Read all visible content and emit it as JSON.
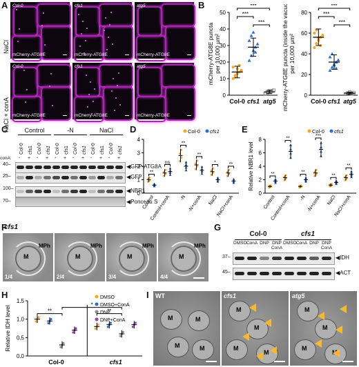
{
  "panels": {
    "A": {
      "label": "A",
      "row_labels": [
        "NaCl",
        "NaCl + conA"
      ],
      "col_labels": [
        "Col-0",
        "cfs1",
        "atg5"
      ],
      "marker": "mCherry-ATG8E"
    },
    "B": {
      "label": "B"
    },
    "C": {
      "label": "C",
      "groups": [
        "Control",
        "-N",
        "NaCl"
      ],
      "conA_label": "conA:",
      "lane_labels": [
        "Col-0",
        "cfs1",
        "Col-0",
        "cfs1",
        "Col-0",
        "cfs1",
        "Col-0",
        "cfs1",
        "Col-0",
        "cfs1",
        "Col-0",
        "cfs1"
      ],
      "conA_signs": [
        "-",
        "+",
        "-",
        "+",
        "-",
        "+",
        "-",
        "+",
        "-",
        "+",
        "-",
        "+"
      ],
      "mw": [
        "40",
        "25",
        "100",
        "70"
      ],
      "bands": [
        "GFP-ATG8A",
        "GFP",
        "NBR1",
        "Ponceau S"
      ]
    },
    "D": {
      "label": "D"
    },
    "E": {
      "label": "E"
    },
    "F": {
      "label": "F",
      "genotype": "cfs1",
      "frames": [
        "1/4",
        "2/4",
        "3/4",
        "4/4"
      ],
      "organelle": "M",
      "phagophore": "MPh"
    },
    "G": {
      "label": "G",
      "genotypes": [
        "Col-0",
        "cfs1"
      ],
      "treatments": [
        "DMSO",
        "ConA",
        "DNP",
        "DNP ConA",
        "DMSO",
        "ConA",
        "DNP",
        "DNP ConA"
      ],
      "mw": [
        "37",
        "45"
      ],
      "bands": [
        "IDH",
        "ACT"
      ]
    },
    "H": {
      "label": "H"
    },
    "I": {
      "label": "I",
      "genotypes": [
        "WT",
        "cfs1",
        "atg5"
      ],
      "organelle": "M"
    }
  },
  "chart_data": [
    {
      "panel": "B-left",
      "type": "scatter",
      "ylabel": "mCherry-ATG8E puncta per 10,000 μm²",
      "categories": [
        "Col-0",
        "cfs1",
        "atg5"
      ],
      "ylim": [
        0,
        50
      ],
      "yticks": [
        0,
        10,
        20,
        30,
        40,
        50
      ],
      "means": [
        14,
        29,
        2
      ],
      "sd": [
        3.5,
        5.5,
        1
      ],
      "points": [
        [
          10,
          12,
          13,
          14,
          15,
          17,
          11,
          16,
          18
        ],
        [
          21,
          24,
          27,
          29,
          31,
          33,
          36,
          38,
          26
        ],
        [
          1,
          1.5,
          2,
          2.5,
          3,
          1,
          2,
          2.5
        ]
      ],
      "colors": [
        "#f5a623",
        "#2b6cd4",
        "#8c8c8c"
      ],
      "significance": [
        "***",
        "***",
        "***"
      ]
    },
    {
      "panel": "B-right",
      "type": "scatter",
      "ylabel": "mCherry-ATG8E puncta (inside the vacuole) per 10,000 μm²",
      "categories": [
        "Col-0",
        "cfs1",
        "atg5"
      ],
      "ylim": [
        0,
        80
      ],
      "yticks": [
        0,
        20,
        40,
        60,
        80
      ],
      "means": [
        56,
        32,
        2
      ],
      "sd": [
        8,
        7,
        1
      ],
      "points": [
        [
          46,
          50,
          53,
          56,
          58,
          60,
          63,
          55,
          48
        ],
        [
          24,
          27,
          30,
          32,
          34,
          37,
          40,
          29,
          26
        ],
        [
          1,
          2,
          3,
          1.5,
          2.5,
          1,
          2,
          3
        ]
      ],
      "colors": [
        "#f5a623",
        "#2b6cd4",
        "#8c8c8c"
      ],
      "significance": [
        "***",
        "***",
        "***"
      ]
    },
    {
      "panel": "D",
      "type": "scatter",
      "ylim": [
        0,
        4
      ],
      "yticks": [
        0,
        1,
        2,
        3,
        4
      ],
      "categories": [
        "Control",
        "Control+conA",
        "-N",
        "-N+conA",
        "NaCl",
        "NaCl+conA"
      ],
      "series": [
        {
          "name": "Col-0",
          "color": "#f5a623",
          "values": [
            1.0,
            1.5,
            2.8,
            2.1,
            1.6,
            1.5
          ]
        },
        {
          "name": "cfs1",
          "color": "#2b6cd4",
          "values": [
            0.6,
            1.6,
            2.0,
            1.7,
            1.0,
            0.9
          ]
        }
      ],
      "significance": [
        "**",
        "ns",
        "**",
        "**",
        "*",
        "**"
      ]
    },
    {
      "panel": "E",
      "type": "scatter",
      "ylabel": "Relative NBR1 level",
      "ylim": [
        0,
        8
      ],
      "yticks": [
        0,
        2,
        4,
        6,
        8
      ],
      "categories": [
        "Control",
        "Control+conA",
        "-N",
        "-N+conA",
        "NaCl",
        "NaCl+conA"
      ],
      "series": [
        {
          "name": "Col-0",
          "color": "#f5a623",
          "values": [
            1.0,
            2.3,
            1.0,
            3.0,
            1.2,
            2.3
          ]
        },
        {
          "name": "cfs1",
          "color": "#2b6cd4",
          "values": [
            1.8,
            6.2,
            2.0,
            6.5,
            1.6,
            2.8
          ]
        }
      ],
      "significance": [
        "**",
        "**",
        "**",
        "***",
        "**",
        "**"
      ]
    },
    {
      "panel": "H",
      "type": "scatter",
      "ylabel": "Relative IDH level",
      "ylim": [
        0,
        1.5
      ],
      "yticks": [
        0,
        0.5,
        1.0,
        1.5
      ],
      "categories": [
        "Col-0",
        "cfs1"
      ],
      "series": [
        {
          "name": "DMSO",
          "color": "#f5a623",
          "values": [
            1.0,
            0.8
          ]
        },
        {
          "name": "DMSO+ConA",
          "color": "#2b6cd4",
          "values": [
            0.95,
            0.85
          ]
        },
        {
          "name": "DNP",
          "color": "#8c8c8c",
          "values": [
            0.3,
            0.6
          ]
        },
        {
          "name": "DNP+ConA",
          "color": "#9b3fb5",
          "values": [
            0.7,
            0.85
          ]
        }
      ],
      "significance": [
        "**",
        "**",
        "*"
      ]
    }
  ]
}
